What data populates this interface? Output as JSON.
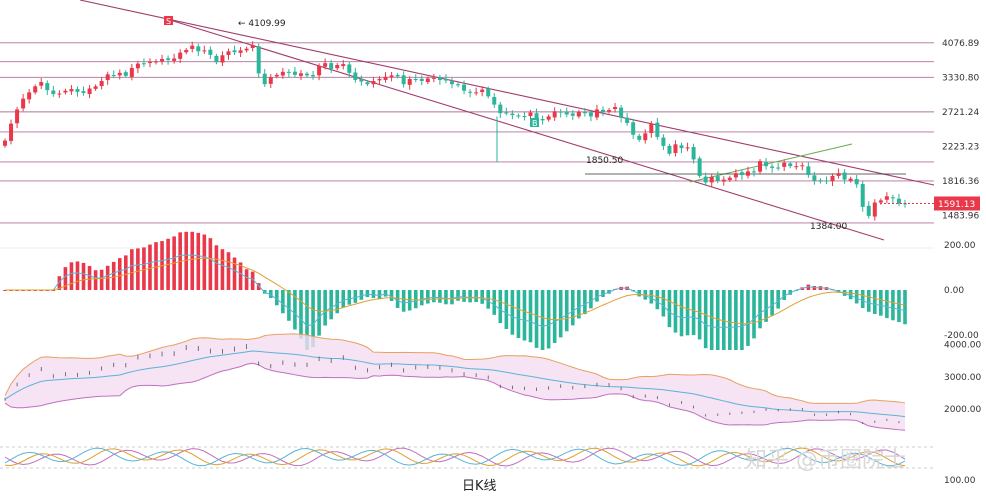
{
  "chart_data": {
    "type": "candlestick",
    "price_axis": {
      "ticks": [
        "4076.89",
        "3330.80",
        "2721.24",
        "2223.23",
        "1816.36",
        "1483.96"
      ],
      "tick_values": [
        4076.89,
        3330.8,
        2721.24,
        2223.23,
        1816.36,
        1483.96
      ],
      "scale": "log",
      "ylim": [
        1300,
        5000
      ]
    },
    "current_price": {
      "label": "1591.13",
      "value": 1591.13,
      "color": "#e8384a"
    },
    "annotations": [
      {
        "label": "4109.99",
        "value": 4109.99
      },
      {
        "label": "1850.50",
        "value": 1850.5
      },
      {
        "label": "1384.00",
        "value": 1384.0
      }
    ],
    "horizontal_levels": [
      4076.89,
      3650,
      3330.8,
      2721.24,
      2420,
      2030,
      1816.36,
      1420
    ],
    "markers": [
      {
        "label": "S",
        "color": "#e8384a"
      },
      {
        "label": "B",
        "color": "#2bb59a"
      }
    ],
    "bar_count": 150,
    "closes": [
      2300,
      2540,
      2760,
      2940,
      3050,
      3160,
      3240,
      3090,
      3020,
      3030,
      3080,
      3110,
      3060,
      3040,
      3120,
      3160,
      3260,
      3390,
      3370,
      3420,
      3360,
      3520,
      3610,
      3600,
      3650,
      3660,
      3710,
      3690,
      3720,
      3850,
      3910,
      4010,
      3880,
      3900,
      3800,
      3640,
      3790,
      3880,
      3860,
      3900,
      3940,
      4020,
      3410,
      3200,
      3330,
      3380,
      3440,
      3430,
      3380,
      3410,
      3370,
      3350,
      3560,
      3620,
      3500,
      3580,
      3600,
      3420,
      3280,
      3250,
      3200,
      3260,
      3300,
      3340,
      3370,
      3350,
      3200,
      3300,
      3290,
      3260,
      3310,
      3320,
      3280,
      3270,
      3200,
      3180,
      3080,
      3050,
      3050,
      3100,
      2980,
      2840,
      2700,
      2710,
      2670,
      2650,
      2640,
      2710,
      2610,
      2590,
      2650,
      2730,
      2710,
      2680,
      2660,
      2720,
      2700,
      2650,
      2760,
      2720,
      2750,
      2800,
      2630,
      2550,
      2380,
      2310,
      2400,
      2540,
      2350,
      2230,
      2130,
      2250,
      2200,
      2210,
      2060,
      1870,
      1800,
      1860,
      1820,
      1830,
      1850,
      1900,
      1880,
      1920,
      1910,
      2040,
      1980,
      1960,
      1960,
      2020,
      1980,
      1980,
      1990,
      1880,
      1820,
      1810,
      1820,
      1870,
      1900,
      1830,
      1840,
      1780,
      1560,
      1480,
      1600,
      1620,
      1660,
      1640,
      1590,
      1591
    ],
    "macd_axis": {
      "ticks": [
        "200.00",
        "0.00",
        "-200.00"
      ],
      "ylim": [
        -300,
        260
      ]
    },
    "boll_axis": {
      "ticks": [
        "4000.00",
        "3000.00",
        "2000.00"
      ],
      "ylim": [
        1500,
        4300
      ]
    },
    "rsi_axis": {
      "ticks": [
        "100.00"
      ]
    }
  },
  "watermark": "知乎 @币圈院士",
  "caption": "日K线",
  "colors": {
    "up": "#e8384a",
    "down": "#2bb59a",
    "channel": "#a23b6a",
    "fill": "#f4dcf0"
  }
}
